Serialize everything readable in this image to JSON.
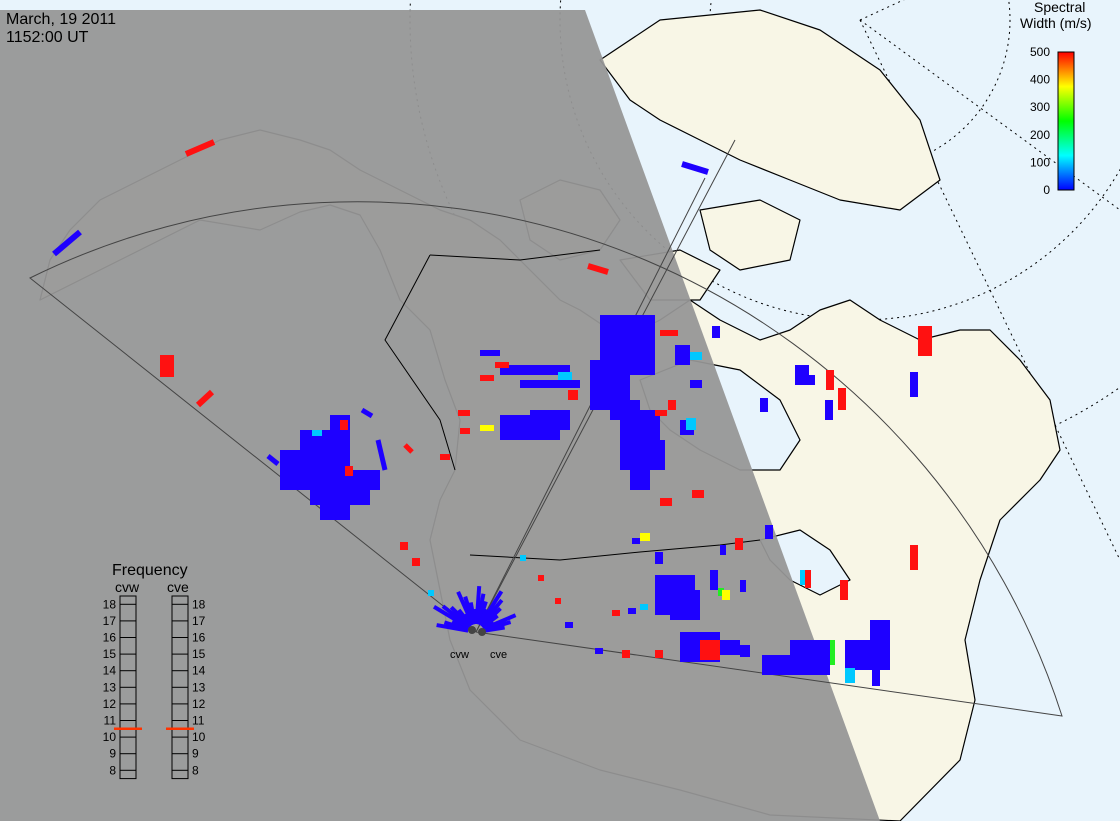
{
  "header": {
    "date": "March, 19 2011",
    "time": "1152:00 UT"
  },
  "colorbar": {
    "title_line1": "Spectral",
    "title_line2": "Width (m/s)",
    "ticks": [
      "500",
      "400",
      "300",
      "200",
      "100",
      "0"
    ],
    "min": 0,
    "max": 500,
    "stops": [
      "#0000ff",
      "#00ffff",
      "#00ff00",
      "#ffff00",
      "#ff0000"
    ]
  },
  "frequency": {
    "title": "Frequency",
    "col_left": "cvw",
    "col_right": "cve",
    "levels": [
      "18",
      "17",
      "16",
      "15",
      "14",
      "13",
      "12",
      "11",
      "10",
      "9",
      "8"
    ],
    "cvw_value": 11,
    "cve_value": 11,
    "marker_color": "#ff3300"
  },
  "radars": [
    {
      "id": "cvw",
      "label": "cvw"
    },
    {
      "id": "cve",
      "label": "cve"
    }
  ],
  "colors": {
    "night": "#969696",
    "ocean_day": "#e8f4fc",
    "land_day": "#f8f6e6",
    "blue": "#1e00ff",
    "red": "#ff1111",
    "cyan": "#00c8ff",
    "yellow": "#ffff00",
    "green": "#22ee22"
  }
}
